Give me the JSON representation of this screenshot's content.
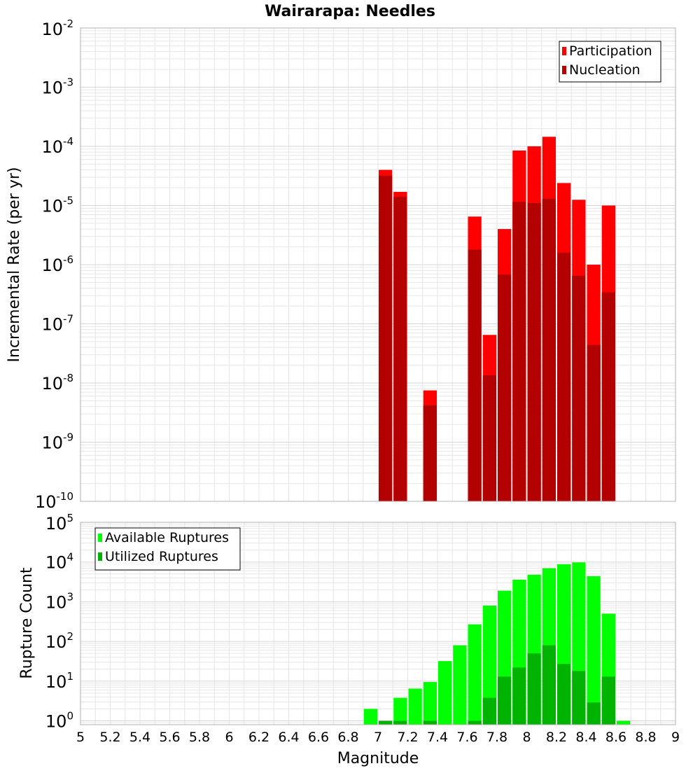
{
  "title": "Wairarapa: Needles",
  "xlabel": "Magnitude",
  "colors": {
    "participation": "#ff0000",
    "nucleation": "#b30000",
    "available": "#00ff00",
    "utilized": "#00b300",
    "grid": "#e6e6e6",
    "frame": "#b0b0b0"
  },
  "chart_data": [
    {
      "type": "bar",
      "scale": "log",
      "ylabel": "Incremental Rate (per yr)",
      "xlim": [
        5,
        9
      ],
      "ylim": [
        1e-10,
        0.01
      ],
      "legend_position": "top-right",
      "legend": [
        "Participation",
        "Nucleation"
      ],
      "x_ticks": [
        "5",
        "5.2",
        "5.4",
        "5.6",
        "5.8",
        "6",
        "6.2",
        "6.4",
        "6.6",
        "6.8",
        "7",
        "7.2",
        "7.4",
        "7.6",
        "7.8",
        "8",
        "8.2",
        "8.4",
        "8.6",
        "8.8",
        "9"
      ],
      "y_ticks": [
        {
          "base": "10",
          "exp": "-10"
        },
        {
          "base": "10",
          "exp": "-9"
        },
        {
          "base": "10",
          "exp": "-8"
        },
        {
          "base": "10",
          "exp": "-7"
        },
        {
          "base": "10",
          "exp": "-6"
        },
        {
          "base": "10",
          "exp": "-5"
        },
        {
          "base": "10",
          "exp": "-4"
        },
        {
          "base": "10",
          "exp": "-3"
        },
        {
          "base": "10",
          "exp": "-2"
        }
      ],
      "x": [
        7.05,
        7.15,
        7.35,
        7.65,
        7.75,
        7.85,
        7.95,
        8.05,
        8.15,
        8.25,
        8.35,
        8.45,
        8.55
      ],
      "series": [
        {
          "name": "Participation",
          "values": [
            4e-05,
            1.7e-05,
            7.5e-09,
            6.5e-06,
            6.5e-08,
            4e-06,
            8.5e-05,
            0.0001,
            0.000145,
            2.4e-05,
            1.25e-05,
            1e-06,
            1e-05
          ]
        },
        {
          "name": "Nucleation",
          "values": [
            3.2e-05,
            1.4e-05,
            4.2e-09,
            1.8e-06,
            1.35e-08,
            6.8e-07,
            1.15e-05,
            1.1e-05,
            1.3e-05,
            1.6e-06,
            6.5e-07,
            4.4e-08,
            3.4e-07
          ]
        }
      ]
    },
    {
      "type": "bar",
      "scale": "log",
      "ylabel": "Rupture Count",
      "xlim": [
        5,
        9
      ],
      "ylim": [
        0.8,
        100000
      ],
      "legend_position": "top-left",
      "legend": [
        "Available Ruptures",
        "Utilized Ruptures"
      ],
      "y_ticks": [
        {
          "base": "10",
          "exp": "0"
        },
        {
          "base": "10",
          "exp": "1"
        },
        {
          "base": "10",
          "exp": "2"
        },
        {
          "base": "10",
          "exp": "3"
        },
        {
          "base": "10",
          "exp": "4"
        },
        {
          "base": "10",
          "exp": "5"
        }
      ],
      "x": [
        6.95,
        7.05,
        7.15,
        7.25,
        7.35,
        7.45,
        7.55,
        7.65,
        7.75,
        7.85,
        7.95,
        8.05,
        8.15,
        8.25,
        8.35,
        8.45,
        8.55,
        8.65
      ],
      "series": [
        {
          "name": "Available Ruptures",
          "values": [
            2,
            1,
            3.8,
            6.5,
            9.5,
            32,
            80,
            270,
            800,
            1900,
            3600,
            4800,
            7000,
            8800,
            9800,
            4400,
            500,
            1
          ]
        },
        {
          "name": "Utilized Ruptures",
          "values": [
            0,
            1,
            1,
            0,
            1,
            0,
            0,
            1,
            3.8,
            13,
            22,
            50,
            80,
            27,
            18,
            2.9,
            13,
            0
          ]
        }
      ]
    }
  ]
}
